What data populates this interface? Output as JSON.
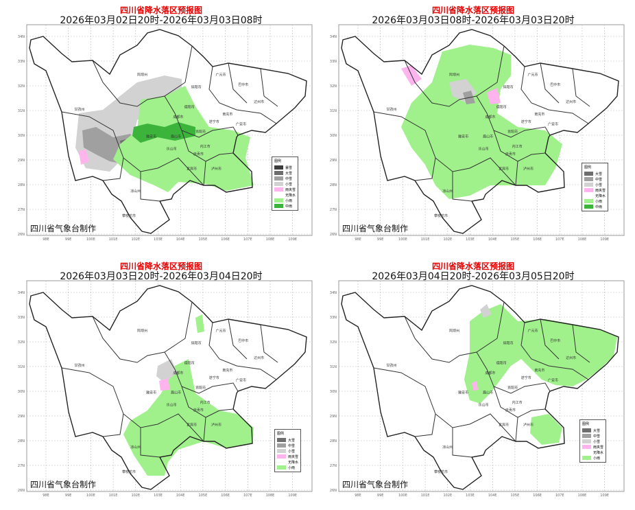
{
  "colors": {
    "暴雪": "#3c3c3c",
    "大雪": "#6e6e6e",
    "中雪": "#a0a0a0",
    "小雪": "#d2d2d2",
    "雨夹雪": "#ffb4ee",
    "无降水": "#ffffff",
    "小雨": "#a0f08c",
    "中雨": "#3cb43c"
  },
  "axes": {
    "lon_ticks": [
      "98E",
      "99E",
      "100E",
      "101E",
      "102E",
      "103E",
      "104E",
      "105E",
      "106E",
      "107E",
      "108E",
      "109E"
    ],
    "lat_ticks": [
      "34N",
      "33N",
      "32N",
      "31N",
      "30N",
      "29N",
      "28N",
      "27N",
      "26N"
    ]
  },
  "cities": [
    {
      "name": "阿坝州",
      "lon": 102.3,
      "lat": 32.4
    },
    {
      "name": "甘孜州",
      "lon": 99.5,
      "lat": 31.0
    },
    {
      "name": "凉山州",
      "lon": 102.0,
      "lat": 27.7
    },
    {
      "name": "攀枝花市",
      "lon": 101.7,
      "lat": 26.7
    },
    {
      "name": "雅安市",
      "lon": 102.7,
      "lat": 29.9
    },
    {
      "name": "乐山市",
      "lon": 103.6,
      "lat": 29.4
    },
    {
      "name": "眉山市",
      "lon": 103.8,
      "lat": 29.9
    },
    {
      "name": "成都市",
      "lon": 103.9,
      "lat": 30.7
    },
    {
      "name": "德阳市",
      "lon": 104.4,
      "lat": 31.1
    },
    {
      "name": "绵阳市",
      "lon": 104.7,
      "lat": 31.9
    },
    {
      "name": "广元市",
      "lon": 105.8,
      "lat": 32.4
    },
    {
      "name": "巴中市",
      "lon": 106.8,
      "lat": 32.0
    },
    {
      "name": "达州市",
      "lon": 107.5,
      "lat": 31.3
    },
    {
      "name": "南充市",
      "lon": 106.1,
      "lat": 30.8
    },
    {
      "name": "遂宁市",
      "lon": 105.5,
      "lat": 30.5
    },
    {
      "name": "广安市",
      "lon": 106.7,
      "lat": 30.4
    },
    {
      "name": "资阳市",
      "lon": 104.9,
      "lat": 30.1
    },
    {
      "name": "内江市",
      "lon": 105.1,
      "lat": 29.5
    },
    {
      "name": "自贡市",
      "lon": 104.8,
      "lat": 29.2
    },
    {
      "name": "宜宾市",
      "lon": 104.5,
      "lat": 28.6
    },
    {
      "name": "泸州市",
      "lon": 105.6,
      "lat": 28.6
    }
  ],
  "panels": [
    {
      "title": "四川省降水落区预报图",
      "period": "2026年03月02日20时-2026年03月03日08时",
      "credit": "四川省气象台制作",
      "legend": {
        "title": "图例",
        "items": [
          "暴雪",
          "大雪",
          "中雪",
          "小雪",
          "雨夹雪",
          "无降水",
          "小雨",
          "中雨"
        ]
      }
    },
    {
      "title": "四川省降水落区预报图",
      "period": "2026年03月03日08时-2026年03月03日20时",
      "credit": "四川省气象台制作",
      "legend": {
        "title": "图例",
        "items": [
          "大雪",
          "中雪",
          "小雪",
          "雨夹雪",
          "无降水",
          "小雨",
          "中雨"
        ]
      }
    },
    {
      "title": "四川省降水落区预报图",
      "period": "2026年03月03日20时-2026年03月04日20时",
      "credit": "四川省气象台制作",
      "legend": {
        "title": "图例",
        "items": [
          "大雪",
          "中雪",
          "小雪",
          "雨夹雪",
          "无降水",
          "小雨"
        ]
      }
    },
    {
      "title": "四川省降水落区预报图",
      "period": "2026年03月04日20时-2026年03月05日20时",
      "credit": "四川省气象台制作",
      "legend": {
        "title": "图例",
        "items": [
          "大雪",
          "中雪",
          "小雪",
          "雨夹雪",
          "无降水",
          "小雨"
        ]
      }
    }
  ]
}
